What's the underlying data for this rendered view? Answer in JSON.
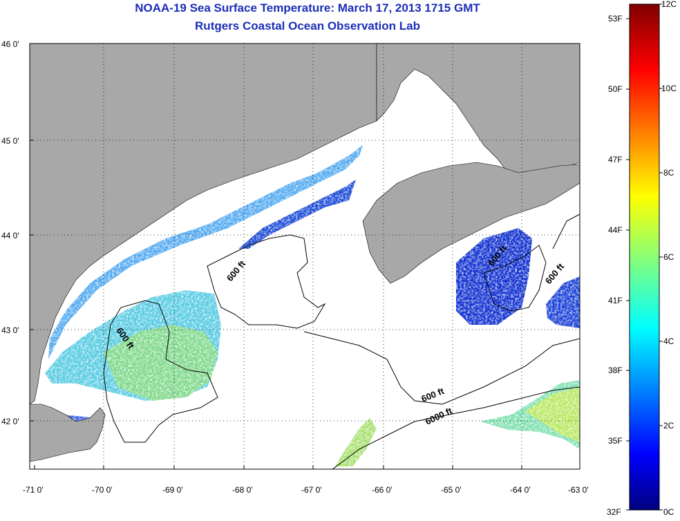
{
  "title": "NOAA-19 Sea Surface Temperature:  March 17, 2013 1715 GMT",
  "subtitle": "Rutgers Coastal Ocean Observation Lab",
  "latitude_labels": [
    "46 0'",
    "45 0'",
    "44 0'",
    "43 0'",
    "42 0'"
  ],
  "longitude_labels": [
    "-71 0'",
    "-70 0'",
    "-69 0'",
    "-68 0'",
    "-67 0'",
    "-66 0'",
    "-65 0'",
    "-64 0'",
    "-63 0'"
  ],
  "contour_labels": [
    "600 ft",
    "600 ft",
    "600 ft",
    "600 ft",
    "600 ft",
    "6000 ft"
  ],
  "colorbar": {
    "fahrenheit_labels": [
      "53F",
      "50F",
      "47F",
      "44F",
      "41F",
      "38F",
      "35F",
      "32F"
    ],
    "celsius_labels": [
      "12C",
      "10C",
      "8C",
      "6C",
      "4C",
      "2C",
      "0C"
    ],
    "min_c": 0,
    "max_c": 12
  },
  "colors": {
    "land": "#a8a8a8",
    "title": "#1a2db8"
  }
}
